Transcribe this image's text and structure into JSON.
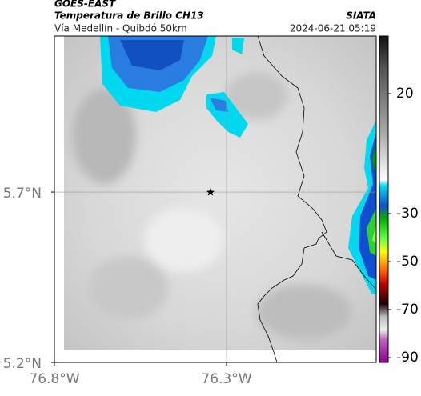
{
  "header": {
    "agency": "GOES-EAST",
    "title": "Temperatura de Brillo CH13",
    "subtitle": "Vía Medellín - Quibdó 50km",
    "credit": "SIATA",
    "datetime": "2024-06-21 05:19"
  },
  "map": {
    "xlim": [
      -76.8,
      -75.865
    ],
    "ylim": [
      5.2,
      6.158
    ],
    "xticks": [
      {
        "value": -76.8,
        "label": "76.8°W"
      },
      {
        "value": -76.3,
        "label": "76.3°W"
      }
    ],
    "yticks": [
      {
        "value": 5.7,
        "label": "5.7°N"
      },
      {
        "value": 5.2,
        "label": "5.2°N"
      }
    ]
  },
  "colorbar": {
    "lim": [
      -92,
      44
    ],
    "ticks": [
      20,
      -30,
      -50,
      -70,
      -90
    ]
  }
}
